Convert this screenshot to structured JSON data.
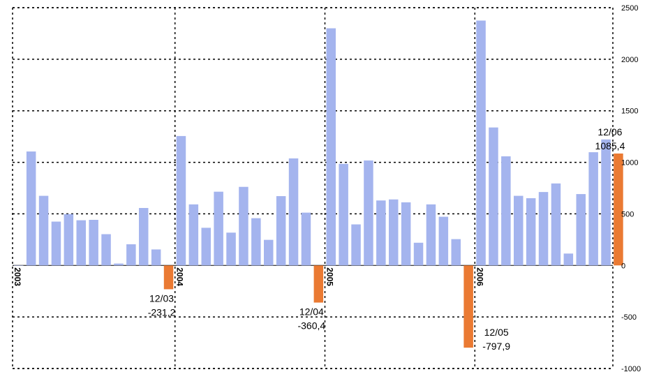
{
  "chart_data": {
    "type": "bar",
    "title": "",
    "xlabel": "",
    "ylabel": "",
    "ylim": [
      -1000,
      2500
    ],
    "yticks": [
      2500,
      2000,
      1500,
      1000,
      500,
      0,
      -500,
      -1000
    ],
    "y_axis_position": "right",
    "grid": true,
    "colors": {
      "positive": "#a4b4ee",
      "highlight": "#ea7a33"
    },
    "years": [
      {
        "label": "2003",
        "values": [
          1.5,
          1105,
          675,
          425,
          498,
          438,
          442,
          303,
          18,
          205,
          557,
          155,
          -231.2
        ]
      },
      {
        "label": "2004",
        "values": [
          1255,
          592,
          365,
          715,
          318,
          762,
          458,
          248,
          672,
          1038,
          512,
          -360.4
        ]
      },
      {
        "label": "2005",
        "values": [
          2300,
          985,
          398,
          1018,
          630,
          640,
          612,
          220,
          592,
          472,
          255,
          -797.9
        ]
      },
      {
        "label": "2006",
        "values": [
          2375,
          1338,
          1058,
          675,
          652,
          712,
          795,
          115,
          692,
          1098,
          1222,
          1085.4
        ]
      }
    ],
    "annotations": [
      {
        "period": "12/03",
        "value": "-231,2"
      },
      {
        "period": "12/04",
        "value": "-360,4"
      },
      {
        "period": "12/05",
        "value": "-797,9"
      },
      {
        "period": "12/06",
        "value": "1085,4"
      }
    ]
  }
}
